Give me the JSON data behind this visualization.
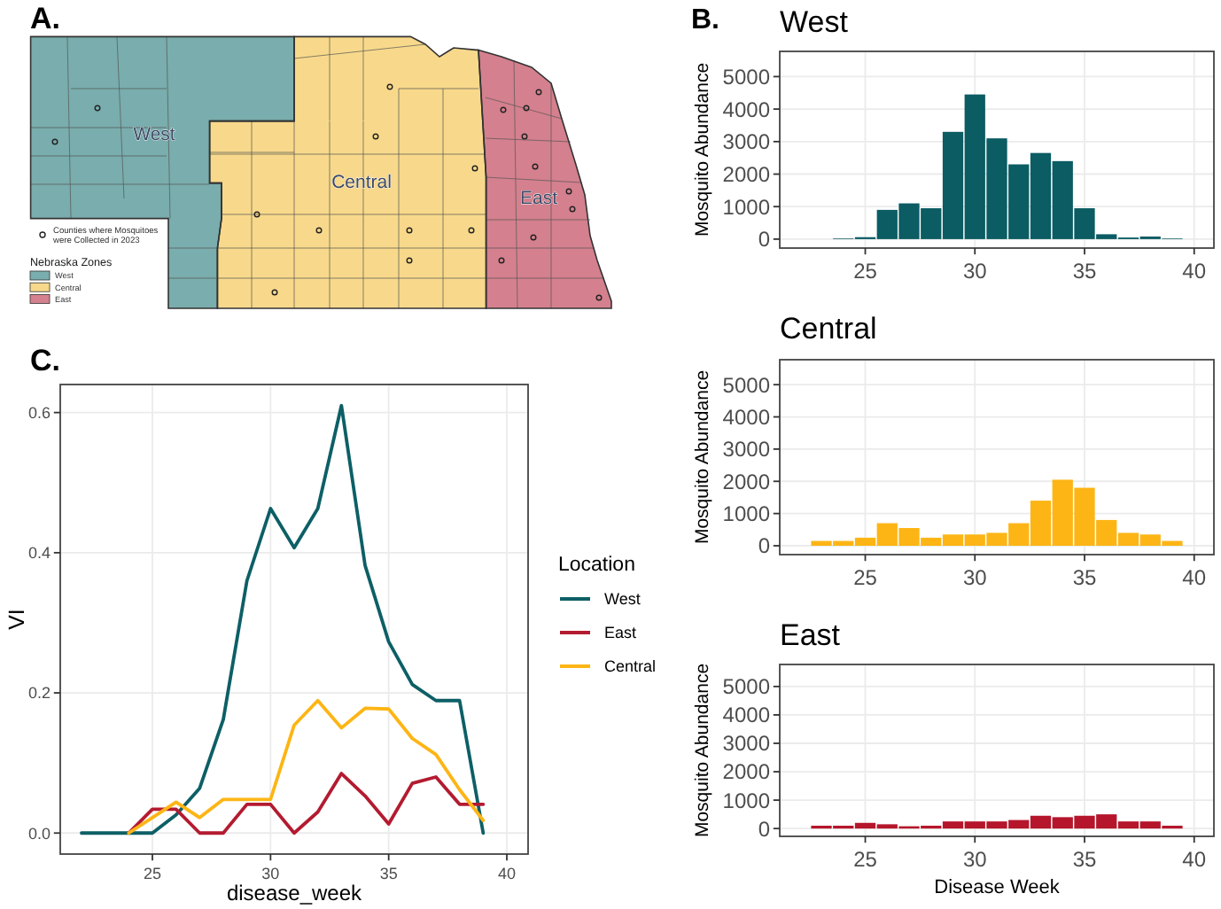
{
  "chart_data": [
    {
      "type": "other",
      "annotations": [
        "A.",
        "Counties where Mosquitoes were Collected in 2023"
      ],
      "categories": [
        "West",
        "Central",
        "East"
      ],
      "colors": [
        "#7aadad",
        "#f8d98b",
        "#d4808e"
      ],
      "legend_title": "Nebraska Zones"
    },
    {
      "type": "bar",
      "title": "West",
      "annotations": [
        "B."
      ],
      "ylabel": "Mosquito Abundance",
      "x": [
        24,
        25,
        26,
        27,
        28,
        29,
        30,
        31,
        32,
        33,
        34,
        35,
        36,
        37,
        38,
        39
      ],
      "values": [
        20,
        60,
        900,
        1100,
        950,
        3300,
        4450,
        3100,
        2300,
        2650,
        2400,
        950,
        150,
        50,
        80,
        20
      ],
      "color": "#0b5c63",
      "xlim": [
        21.1,
        40.9
      ],
      "ylim": [
        -275,
        5775
      ],
      "xticks": [
        25,
        30,
        35,
        40
      ],
      "yticks": [
        0,
        1000,
        2000,
        3000,
        4000,
        5000
      ],
      "grid": true
    },
    {
      "type": "bar",
      "title": "Central",
      "ylabel": "Mosquito Abundance",
      "x": [
        23,
        24,
        25,
        26,
        27,
        28,
        29,
        30,
        31,
        32,
        33,
        34,
        35,
        36,
        37,
        38,
        39
      ],
      "values": [
        150,
        150,
        250,
        700,
        550,
        250,
        350,
        350,
        400,
        700,
        1400,
        2050,
        1800,
        800,
        400,
        350,
        150
      ],
      "color": "#fdb515",
      "xlim": [
        21.1,
        40.9
      ],
      "ylim": [
        -275,
        5775
      ],
      "xticks": [
        25,
        30,
        35,
        40
      ],
      "yticks": [
        0,
        1000,
        2000,
        3000,
        4000,
        5000
      ],
      "grid": true
    },
    {
      "type": "bar",
      "title": "East",
      "xlabel": "Disease Week",
      "ylabel": "Mosquito Abundance",
      "x": [
        23,
        24,
        25,
        26,
        27,
        28,
        29,
        30,
        31,
        32,
        33,
        34,
        35,
        36,
        37,
        38,
        39
      ],
      "values": [
        100,
        100,
        200,
        150,
        80,
        100,
        250,
        250,
        250,
        300,
        450,
        400,
        450,
        500,
        250,
        250,
        100
      ],
      "color": "#b5162b",
      "xlim": [
        21.1,
        40.9
      ],
      "ylim": [
        -275,
        5775
      ],
      "xticks": [
        25,
        30,
        35,
        40
      ],
      "yticks": [
        0,
        1000,
        2000,
        3000,
        4000,
        5000
      ],
      "grid": true
    },
    {
      "type": "line",
      "annotations": [
        "C."
      ],
      "xlabel": "disease_week",
      "ylabel": "VI",
      "legend_title": "Location",
      "legend": "right",
      "series": [
        {
          "name": "West",
          "color": "#0d5f66",
          "x": [
            22,
            23,
            24,
            25,
            26,
            27,
            28,
            29,
            30,
            31,
            32,
            33,
            34,
            35,
            36,
            37,
            38,
            39
          ],
          "values": [
            0,
            0,
            0,
            0,
            0.026,
            0.064,
            0.162,
            0.36,
            0.463,
            0.407,
            0.463,
            0.61,
            0.382,
            0.273,
            0.212,
            0.189,
            0.189,
            0
          ]
        },
        {
          "name": "East",
          "color": "#b31b30",
          "x": [
            24,
            25,
            26,
            27,
            28,
            29,
            30,
            31,
            32,
            33,
            34,
            35,
            36,
            37,
            38,
            39
          ],
          "values": [
            0,
            0.034,
            0.034,
            0,
            0,
            0.041,
            0.041,
            0,
            0.03,
            0.085,
            0.053,
            0.013,
            0.071,
            0.08,
            0.041,
            0.041
          ]
        },
        {
          "name": "Central",
          "color": "#fdb515",
          "x": [
            24,
            25,
            26,
            27,
            28,
            29,
            30,
            31,
            32,
            33,
            34,
            35,
            36,
            37,
            38,
            39
          ],
          "values": [
            0,
            0.022,
            0.044,
            0.022,
            0.048,
            0.048,
            0.048,
            0.154,
            0.189,
            0.15,
            0.178,
            0.177,
            0.135,
            0.112,
            0.062,
            0.018
          ]
        }
      ],
      "xlim": [
        21.1,
        40.9
      ],
      "ylim": [
        -0.03,
        0.64
      ],
      "xticks": [
        25,
        30,
        35,
        40
      ],
      "yticks": [
        {
          "value": 0,
          "label": "0.0"
        },
        0.2,
        0.4,
        0.6
      ],
      "grid": true
    }
  ]
}
